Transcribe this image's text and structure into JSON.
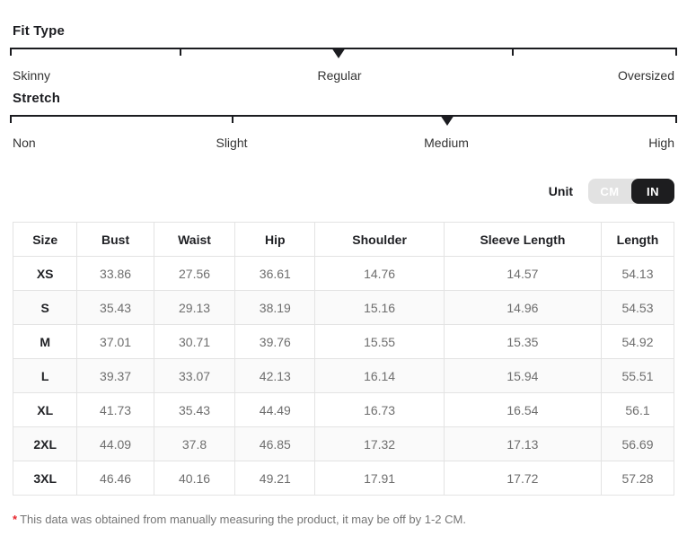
{
  "fit_type": {
    "title": "Fit Type",
    "labels": [
      "Skinny",
      "Regular",
      "Oversized"
    ],
    "selected": "Regular"
  },
  "stretch": {
    "title": "Stretch",
    "labels": [
      "Non",
      "Slight",
      "Medium",
      "High"
    ],
    "selected": "Medium"
  },
  "unit": {
    "label": "Unit",
    "options": [
      "CM",
      "IN"
    ],
    "selected": "IN"
  },
  "size_table": {
    "columns": [
      "Size",
      "Bust",
      "Waist",
      "Hip",
      "Shoulder",
      "Sleeve Length",
      "Length"
    ],
    "rows": [
      {
        "size": "XS",
        "values": [
          "33.86",
          "27.56",
          "36.61",
          "14.76",
          "14.57",
          "54.13"
        ]
      },
      {
        "size": "S",
        "values": [
          "35.43",
          "29.13",
          "38.19",
          "15.16",
          "14.96",
          "54.53"
        ]
      },
      {
        "size": "M",
        "values": [
          "37.01",
          "30.71",
          "39.76",
          "15.55",
          "15.35",
          "54.92"
        ]
      },
      {
        "size": "L",
        "values": [
          "39.37",
          "33.07",
          "42.13",
          "16.14",
          "15.94",
          "55.51"
        ]
      },
      {
        "size": "XL",
        "values": [
          "41.73",
          "35.43",
          "44.49",
          "16.73",
          "16.54",
          "56.1"
        ]
      },
      {
        "size": "2XL",
        "values": [
          "44.09",
          "37.8",
          "46.85",
          "17.32",
          "17.13",
          "56.69"
        ]
      },
      {
        "size": "3XL",
        "values": [
          "46.46",
          "40.16",
          "49.21",
          "17.91",
          "17.72",
          "57.28"
        ]
      }
    ]
  },
  "footnote": {
    "marker": "*",
    "text": "This data was obtained from manually measuring the product, it may be off by 1-2 CM."
  },
  "colors": {
    "scale_line": "#1b1c20",
    "toggle_inactive_bg": "#e2e2e2",
    "toggle_active_bg": "#1d1d1f",
    "table_border": "#e3e3e3",
    "value_text": "#6e6e6e",
    "footnote_text": "#757575",
    "asterisk_red": "#e8262d"
  }
}
